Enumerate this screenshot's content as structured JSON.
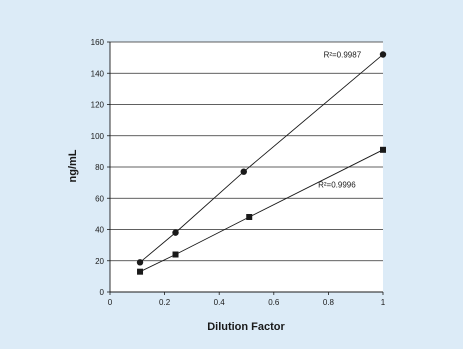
{
  "chart_data": {
    "type": "scatter",
    "xlabel": "Dilution Factor",
    "ylabel": "ng/mL",
    "xlim": [
      0,
      1
    ],
    "ylim": [
      0,
      160
    ],
    "x_ticks": [
      0,
      0.2,
      0.4,
      0.6,
      0.8,
      1
    ],
    "x_tick_labels": [
      "0",
      "0.2",
      "0.4",
      "0.6",
      "0.8",
      "1"
    ],
    "y_ticks": [
      0,
      20,
      40,
      60,
      80,
      100,
      120,
      140,
      160
    ],
    "y_tick_labels": [
      "0",
      "20",
      "40",
      "60",
      "80",
      "100",
      "120",
      "140",
      "160"
    ],
    "grid": "horizontal",
    "series": [
      {
        "marker": "circle",
        "color": "#1a1a1a",
        "points": [
          {
            "x": 0.11,
            "y": 19
          },
          {
            "x": 0.24,
            "y": 38
          },
          {
            "x": 0.49,
            "y": 77
          },
          {
            "x": 1.0,
            "y": 152
          }
        ]
      },
      {
        "marker": "square",
        "color": "#1a1a1a",
        "points": [
          {
            "x": 0.11,
            "y": 13
          },
          {
            "x": 0.24,
            "y": 24
          },
          {
            "x": 0.51,
            "y": 48
          },
          {
            "x": 1.0,
            "y": 91
          }
        ]
      }
    ],
    "annotations": [
      {
        "text": "R²=0.9987",
        "series": 0,
        "x": 0.92,
        "y": 150
      },
      {
        "text": "R²=0.9996",
        "series": 1,
        "x": 0.9,
        "y": 67
      }
    ]
  }
}
